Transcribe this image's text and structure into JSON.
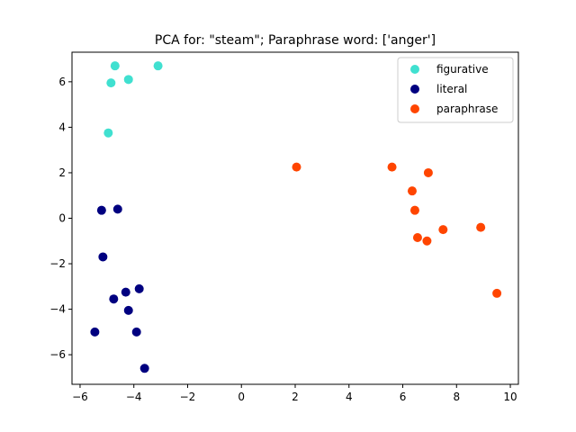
{
  "chart_data": {
    "type": "scatter",
    "title": "PCA for: \"steam\"; Paraphrase word: ['anger']",
    "xlabel": "",
    "ylabel": "",
    "xlim": [
      -6.3,
      10.3
    ],
    "ylim": [
      -7.3,
      7.3
    ],
    "xticks": [
      -6,
      -4,
      -2,
      0,
      2,
      4,
      6,
      8,
      10
    ],
    "xtick_labels": [
      "−6",
      "−4",
      "−2",
      "0",
      "2",
      "4",
      "6",
      "8",
      "10"
    ],
    "yticks": [
      -6,
      -4,
      -2,
      0,
      2,
      4,
      6
    ],
    "ytick_labels": [
      "−6",
      "−4",
      "−2",
      "0",
      "2",
      "4",
      "6"
    ],
    "grid": false,
    "legend_position": "top-right",
    "series": [
      {
        "name": "figurative",
        "color": "#40e0d0",
        "points": [
          [
            -4.7,
            6.7
          ],
          [
            -3.1,
            6.7
          ],
          [
            -4.2,
            6.1
          ],
          [
            -4.85,
            5.95
          ],
          [
            -4.95,
            3.75
          ]
        ]
      },
      {
        "name": "literal",
        "color": "#000080",
        "points": [
          [
            -5.2,
            0.35
          ],
          [
            -4.6,
            0.4
          ],
          [
            -5.15,
            -1.7
          ],
          [
            -3.8,
            -3.1
          ],
          [
            -4.3,
            -3.25
          ],
          [
            -4.75,
            -3.55
          ],
          [
            -4.2,
            -4.05
          ],
          [
            -5.45,
            -5.0
          ],
          [
            -3.9,
            -5.0
          ],
          [
            -3.6,
            -6.6
          ]
        ]
      },
      {
        "name": "paraphrase",
        "color": "#ff4500",
        "points": [
          [
            2.05,
            2.25
          ],
          [
            5.6,
            2.25
          ],
          [
            6.95,
            2.0
          ],
          [
            6.35,
            1.2
          ],
          [
            6.45,
            0.35
          ],
          [
            6.55,
            -0.85
          ],
          [
            6.9,
            -1.0
          ],
          [
            7.5,
            -0.5
          ],
          [
            8.9,
            -0.4
          ],
          [
            9.5,
            -3.3
          ]
        ]
      }
    ]
  }
}
